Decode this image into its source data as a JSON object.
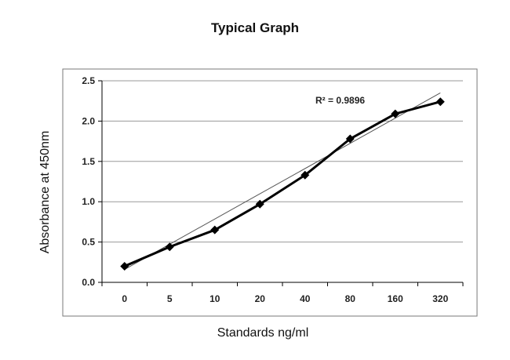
{
  "chart_data": {
    "type": "line",
    "title": "Typical Graph",
    "xlabel": "Standards ng/ml",
    "ylabel": "Absorbance at 450nm",
    "categories": [
      "0",
      "5",
      "10",
      "20",
      "40",
      "80",
      "160",
      "320"
    ],
    "series": [
      {
        "values": [
          0.2,
          0.44,
          0.65,
          0.97,
          1.33,
          1.78,
          2.09,
          2.24
        ]
      }
    ],
    "trendline": {
      "type": "linear",
      "start": 0.16,
      "end": 2.35
    },
    "annotation": "R² = 0.9896",
    "ylim": [
      0,
      2.5
    ],
    "yticks": [
      "0.0",
      "0.5",
      "1.0",
      "1.5",
      "2.0",
      "2.5"
    ],
    "grid": true,
    "legend": "none",
    "colors": {
      "series": "#000000",
      "trend": "#555555",
      "grid": "#9a9a9a"
    }
  }
}
